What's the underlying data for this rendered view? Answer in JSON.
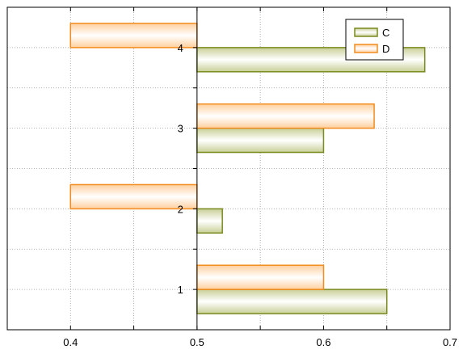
{
  "chart_data": {
    "type": "bar",
    "orientation": "horizontal",
    "title": "",
    "xlabel": "",
    "ylabel": "",
    "xlim": [
      0.35,
      0.7
    ],
    "ylim": [
      0.5,
      4.5
    ],
    "x_ticks": [
      "0.4",
      "0.5",
      "0.6",
      "0.7"
    ],
    "y_ticks": [
      "1",
      "2",
      "3",
      "4"
    ],
    "bar_base": 0.5,
    "grid": true,
    "legend_position": "top-right",
    "categories": [
      "1",
      "2",
      "3",
      "4"
    ],
    "series": [
      {
        "name": "C",
        "values": [
          0.65,
          0.52,
          0.6,
          0.68
        ],
        "color": "#7a8a1e",
        "fill": "#eef2d8"
      },
      {
        "name": "D",
        "values": [
          0.6,
          0.4,
          0.64,
          0.4
        ],
        "color": "#f28c1e",
        "fill": "#fff0e0"
      }
    ]
  }
}
